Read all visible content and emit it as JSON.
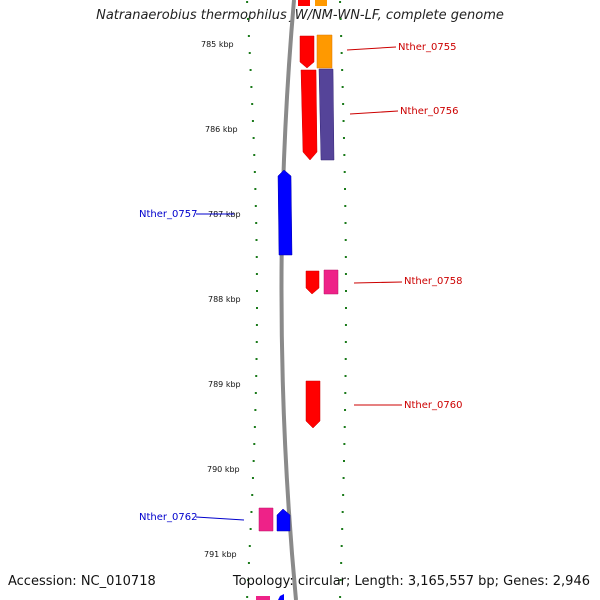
{
  "title": "Natranaerobius thermophilus JW/NM-WN-LF, complete genome",
  "footer": {
    "accession": "Accession: NC_010718",
    "summary": "Topology: circular; Length: 3,165,557 bp; Genes: 2,946"
  },
  "colors": {
    "backbone": "#8a8a8a",
    "tick": "#1a7a1a",
    "forward_label": "#cc0000",
    "reverse_label": "#0000cc",
    "red": "#ff0000",
    "orange": "#ff9900",
    "purple": "#554499",
    "blue": "#0000ff",
    "pink": "#ee2288"
  },
  "kbp_labels": [
    "785 kbp",
    "786 kbp",
    "787 kbp",
    "788 kbp",
    "789 kbp",
    "790 kbp",
    "791 kbp"
  ],
  "gene_labels": {
    "g755": "Nther_0755",
    "g756": "Nther_0756",
    "g757": "Nther_0757",
    "g758": "Nther_0758",
    "g760": "Nther_0760",
    "g762": "Nther_0762"
  }
}
